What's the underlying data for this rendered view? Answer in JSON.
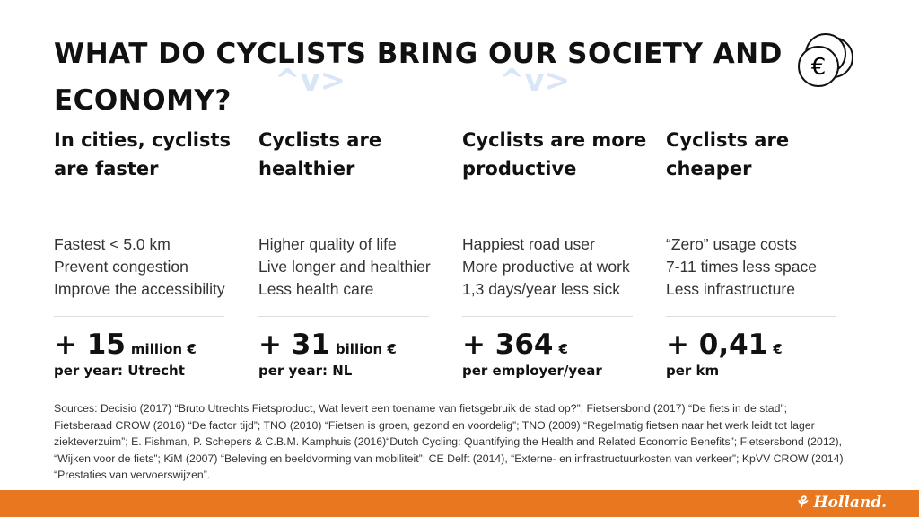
{
  "title": "WHAT DO CYCLISTS BRING OUR SOCIETY AND ECONOMY?",
  "columns": [
    {
      "heading": "In cities, cyclists are faster",
      "bullets": [
        "Fastest < 5.0 km",
        "Prevent congestion",
        "Improve the accessibility"
      ],
      "value": "+ 15",
      "unit": "million €",
      "sub": "per year: Utrecht"
    },
    {
      "heading": "Cyclists are healthier",
      "bullets": [
        "Higher quality of life",
        "Live longer and healthier",
        "Less health care"
      ],
      "value": "+ 31",
      "unit": "billion €",
      "sub": "per year: NL"
    },
    {
      "heading": "Cyclists are more productive",
      "bullets": [
        "Happiest road user",
        "More productive at work",
        "1,3 days/year less sick"
      ],
      "value": "+ 364",
      "unit": "€",
      "sub": "per employer/year"
    },
    {
      "heading": "Cyclists are cheaper",
      "bullets": [
        "“Zero” usage costs",
        "7-11 times less space",
        "Less infrastructure"
      ],
      "value": "+ 0,41",
      "unit": "€",
      "sub": "per km"
    }
  ],
  "sources": "Sources: Decisio (2017) “Bruto Utrechts Fietsproduct, Wat levert een toename van fietsgebruik de stad op?”; Fietsersbond (2017) “De fiets in de stad”; Fietsberaad CROW (2016) “De factor tijd”; TNO (2010) “Fietsen is groen, gezond en voordelig”; TNO (2009) “Regelmatig fietsen naar het werk leidt tot lager ziekteverzuim”; E. Fishman, P. Schepers & C.B.M. Kamphuis (2016)“Dutch Cycling: Quantifying the Health and Related Economic Benefits”; Fietsersbond (2012), “Wijken voor de fiets”; KiM (2007) “Beleving en beeldvorming van mobiliteit”; CE Delft (2014), “Externe- en infrastructuurkosten van verkeer”; KpVV CROW (2014) “Prestaties van vervoerswijzen”.",
  "footer": {
    "logo": "Holland."
  },
  "coin_symbol": "€",
  "colors": {
    "accent": "#e8771f"
  }
}
